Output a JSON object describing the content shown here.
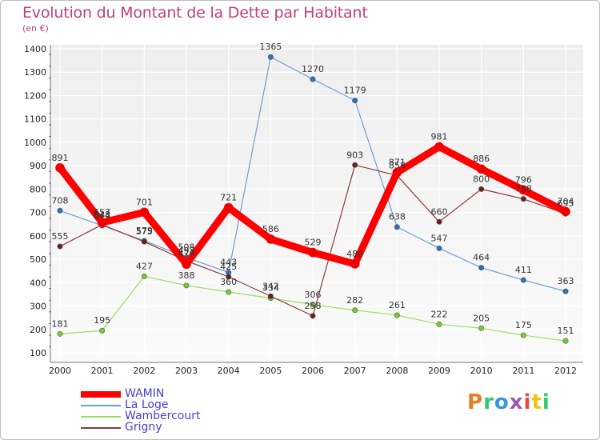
{
  "header": {
    "title": "Evolution du Montant de la Dette par Habitant",
    "subtitle": "(en €)"
  },
  "brand": {
    "text": "Proxiti"
  },
  "chart_data": {
    "type": "line",
    "title": "Evolution du Montant de la Dette par Habitant",
    "subtitle": "(en €)",
    "xlabel": "",
    "ylabel": "",
    "x": [
      2000,
      2001,
      2002,
      2003,
      2004,
      2005,
      2006,
      2007,
      2008,
      2009,
      2010,
      2011,
      2012
    ],
    "x_tick_labels": [
      "2000",
      "2001",
      "2002",
      "2003",
      "2004",
      "2005",
      "2006",
      "2007",
      "2008",
      "2009",
      "2010",
      "2011",
      "2012"
    ],
    "ylim": [
      100,
      1400
    ],
    "y_ticks": [
      100,
      200,
      300,
      400,
      500,
      600,
      700,
      800,
      900,
      1000,
      1100,
      1200,
      1300,
      1400
    ],
    "grid": true,
    "legend_position": "bottom-left",
    "series": [
      {
        "name": "WAMIN",
        "color": "#ff0000",
        "values": [
          891,
          657,
          701,
          479,
          721,
          586,
          529,
          480,
          871,
          981,
          886,
          796,
          704
        ],
        "labels": [
          "891",
          "657",
          "701",
          "479",
          "721",
          "586",
          "529",
          "480",
          "871",
          "981",
          "886",
          "796",
          "704"
        ]
      },
      {
        "name": "La Loge",
        "color": "#6a9fd4",
        "values": [
          708,
          644,
          579,
          508,
          443,
          1365,
          1270,
          1179,
          638,
          547,
          464,
          411,
          363
        ],
        "labels": [
          "708",
          "644",
          "579",
          "508",
          "443",
          "1365",
          "1270",
          "1179",
          "638",
          "547",
          "464",
          "411",
          "363"
        ]
      },
      {
        "name": "Wambercourt",
        "color": "#99dd66",
        "values": [
          181,
          195,
          427,
          388,
          360,
          334,
          306,
          282,
          261,
          222,
          205,
          175,
          151
        ],
        "labels": [
          "181",
          "195",
          "427",
          "388",
          "360",
          "334",
          "306",
          "282",
          "261",
          "222",
          "205",
          "175",
          "151"
        ]
      },
      {
        "name": "Grigny",
        "color": "#8b3a3a",
        "values": [
          555,
          648,
          575,
          493,
          425,
          342,
          258,
          903,
          858,
          660,
          800,
          758,
          695
        ],
        "labels": [
          "555",
          "648",
          "575",
          "493",
          "425",
          "342",
          "258",
          "903",
          "858",
          "660",
          "800",
          "758",
          "695"
        ]
      }
    ]
  }
}
